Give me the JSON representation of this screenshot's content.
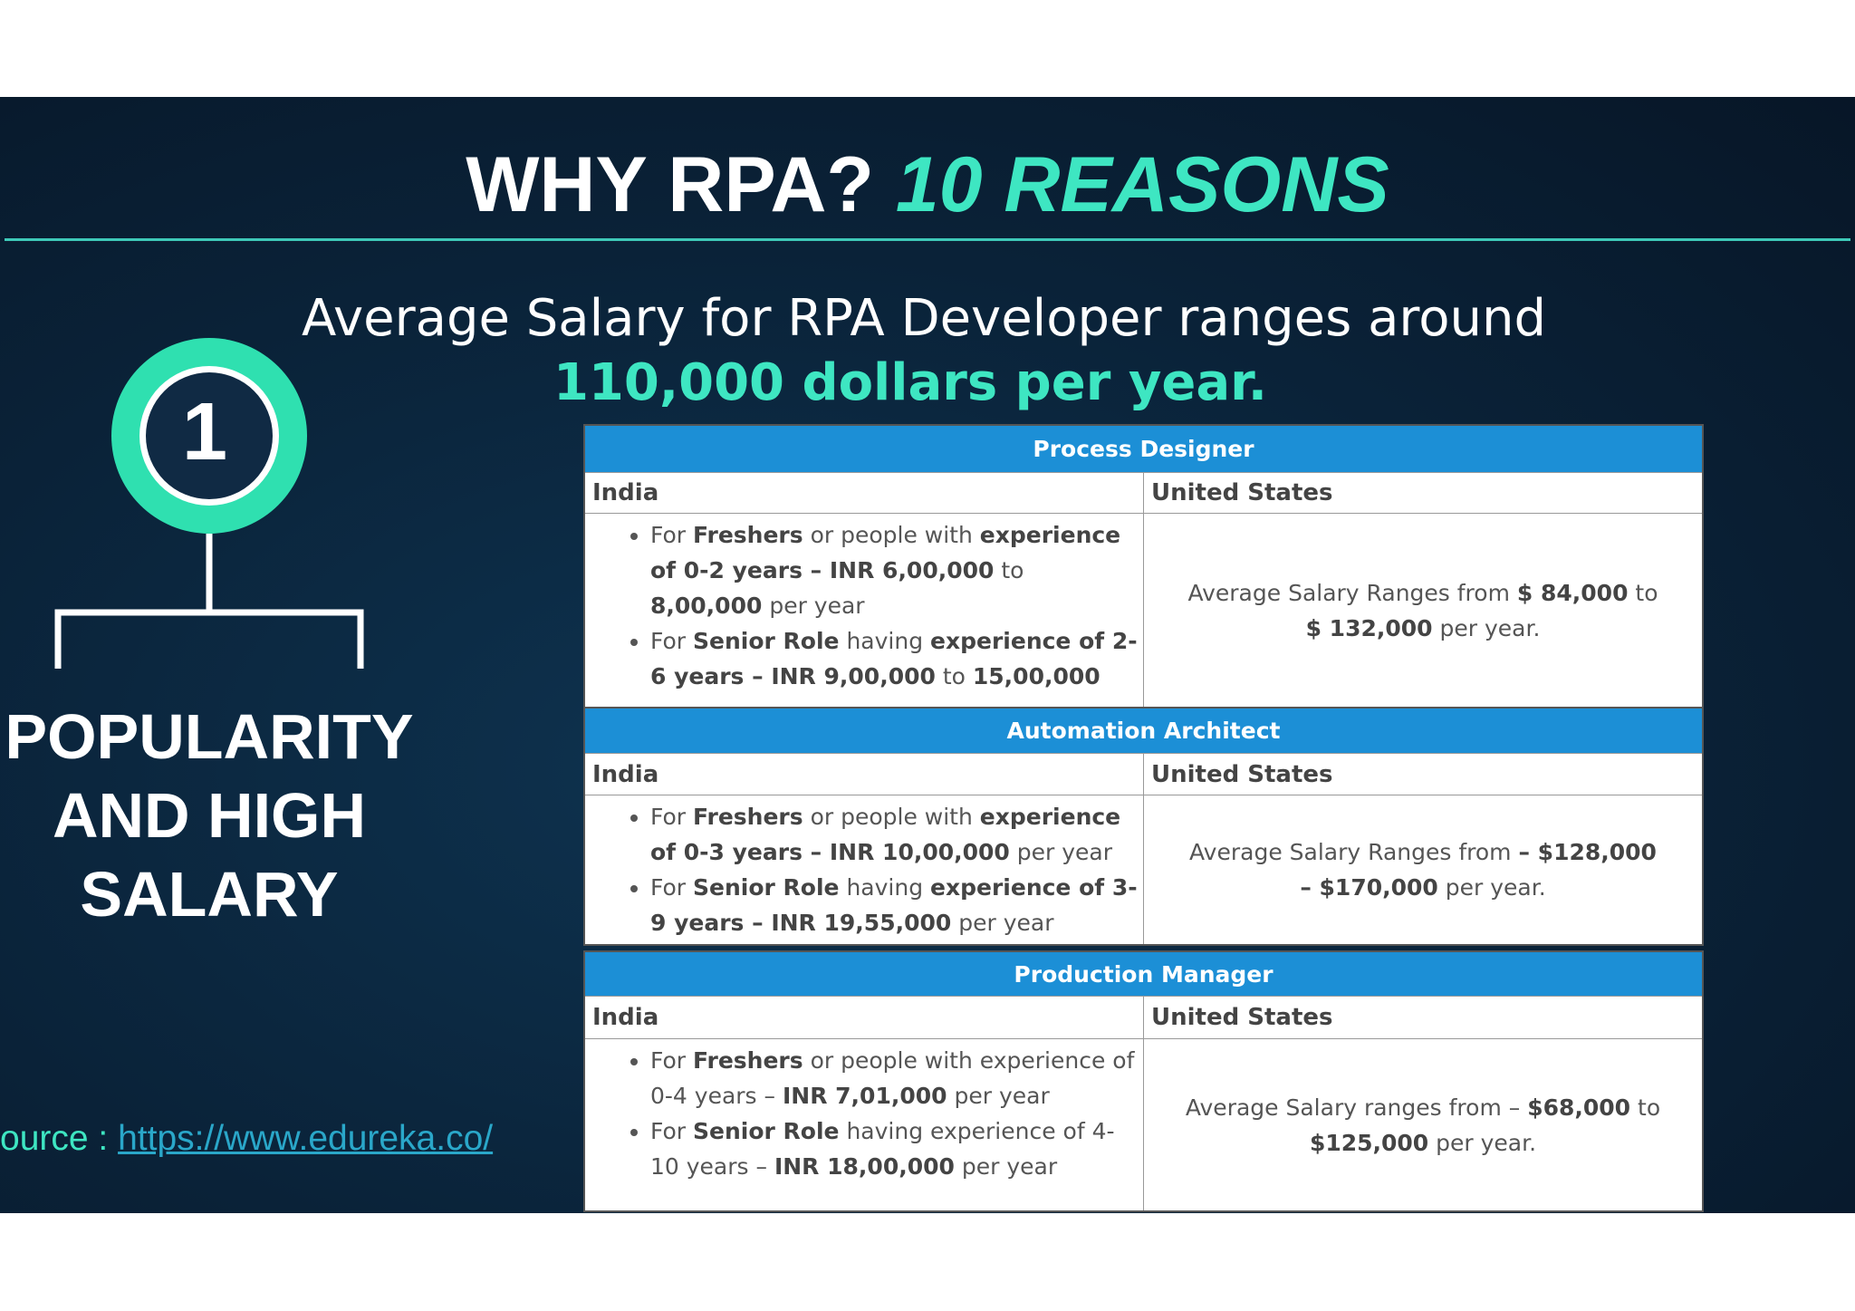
{
  "slide": {
    "title": {
      "white": "WHY RPA?",
      "accent": "10 REASONS"
    },
    "subtitle": {
      "line1": "Average Salary for RPA Developer ranges around",
      "line2": "110,000 dollars per year."
    },
    "badge": "1",
    "heading": [
      "POPULARITY",
      "AND HIGH",
      "SALARY"
    ],
    "source": {
      "label": "Source : ",
      "link": "https://www.edureka.co/"
    },
    "columns": [
      "India",
      "United States"
    ],
    "tables": [
      {
        "title": "Process Designer",
        "india": [
          [
            {
              "text": "For "
            },
            {
              "text": "Freshers",
              "bold": true
            },
            {
              "text": " or people with "
            },
            {
              "text": "experience of 0-2 years –  INR 6,00,000",
              "bold": true
            },
            {
              "text": " to "
            },
            {
              "text": "8,00,000",
              "bold": true
            },
            {
              "text": " per year"
            }
          ],
          [
            {
              "text": "For "
            },
            {
              "text": "Senior Role",
              "bold": true
            },
            {
              "text": " having "
            },
            {
              "text": "experience of 2-6 years – INR 9,00,000",
              "bold": true
            },
            {
              "text": " to "
            },
            {
              "text": "15,00,000",
              "bold": true
            },
            {
              "text": " per year"
            }
          ]
        ],
        "us": [
          {
            "text": "Average Salary Ranges from  "
          },
          {
            "text": "$ 84,000",
            "bold": true
          },
          {
            "text": " to "
          },
          {
            "text": "$ 132,000",
            "bold": true
          },
          {
            "text": " per year."
          }
        ]
      },
      {
        "title": "Automation Architect",
        "india": [
          [
            {
              "text": "For "
            },
            {
              "text": "Freshers",
              "bold": true
            },
            {
              "text": " or people with "
            },
            {
              "text": "experience of 0-3 years – INR 10,00,000",
              "bold": true
            },
            {
              "text": " per year"
            }
          ],
          [
            {
              "text": "For "
            },
            {
              "text": "Senior Role",
              "bold": true
            },
            {
              "text": " having "
            },
            {
              "text": "experience of 3-9 years – INR 19,55,000",
              "bold": true
            },
            {
              "text": " per year"
            }
          ]
        ],
        "us": [
          {
            "text": "Average Salary Ranges from "
          },
          {
            "text": "– $128,000 – $170,000",
            "bold": true
          },
          {
            "text": " per year."
          }
        ]
      },
      {
        "title": "Production Manager",
        "india": [
          [
            {
              "text": "For "
            },
            {
              "text": "Freshers",
              "bold": true
            },
            {
              "text": " or people with experience of 0-4 years – "
            },
            {
              "text": "INR 7,01,000",
              "bold": true
            },
            {
              "text": " per year"
            }
          ],
          [
            {
              "text": "For "
            },
            {
              "text": "Senior Role",
              "bold": true
            },
            {
              "text": " having experience of 4-10 years – "
            },
            {
              "text": "INR 18,00,000",
              "bold": true
            },
            {
              "text": " per year"
            }
          ]
        ],
        "us": [
          {
            "text": "Average Salary ranges from – "
          },
          {
            "text": "$68,000",
            "bold": true
          },
          {
            "text": " to "
          },
          {
            "text": "$125,000",
            "bold": true
          },
          {
            "text": " per year."
          }
        ]
      }
    ]
  }
}
